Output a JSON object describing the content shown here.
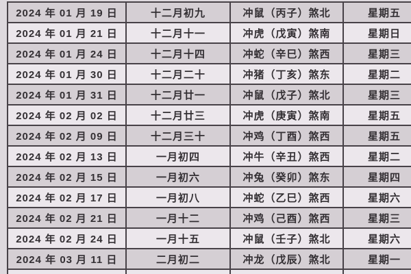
{
  "table": {
    "rows": [
      {
        "date": "2024 年 01 月 19 日",
        "lunar": "十二月初九",
        "clash": "冲鼠（丙子）煞北",
        "weekday": "星期五"
      },
      {
        "date": "2024 年 01 月 21 日",
        "lunar": "十二月十一",
        "clash": "冲虎（戊寅）煞南",
        "weekday": "星期日"
      },
      {
        "date": "2024 年 01 月 24 日",
        "lunar": "十二月十四",
        "clash": "冲蛇（辛巳）煞西",
        "weekday": "星期三"
      },
      {
        "date": "2024 年 01 月 30 日",
        "lunar": "十二月二十",
        "clash": "冲猪（丁亥）煞东",
        "weekday": "星期二"
      },
      {
        "date": "2024 年 01 月 31 日",
        "lunar": "十二月廿一",
        "clash": "冲鼠（戊子）煞北",
        "weekday": "星期三"
      },
      {
        "date": "2024 年 02 月 02 日",
        "lunar": "十二月廿三",
        "clash": "冲虎（庚寅）煞南",
        "weekday": "星期五"
      },
      {
        "date": "2024 年 02 月 09 日",
        "lunar": "十二月三十",
        "clash": "冲鸡（丁酉）煞西",
        "weekday": "星期五"
      },
      {
        "date": "2024 年 02 月 13 日",
        "lunar": "一月初四",
        "clash": "冲牛（辛丑）煞西",
        "weekday": "星期二"
      },
      {
        "date": "2024 年 02 月 15 日",
        "lunar": "一月初六",
        "clash": "冲兔（癸卯）煞东",
        "weekday": "星期四"
      },
      {
        "date": "2024 年 02 月 17 日",
        "lunar": "一月初八",
        "clash": "冲蛇（乙巳）煞西",
        "weekday": "星期六"
      },
      {
        "date": "2024 年 02 月 21 日",
        "lunar": "一月十二",
        "clash": "冲鸡（己酉）煞西",
        "weekday": "星期三"
      },
      {
        "date": "2024 年 02 月 24 日",
        "lunar": "一月十五",
        "clash": "冲鼠（壬子）煞北",
        "weekday": "星期六"
      },
      {
        "date": "2024 年 03 月 11 日",
        "lunar": "二月初二",
        "clash": "冲龙（戊辰）煞北",
        "weekday": "星期一"
      }
    ]
  },
  "colors": {
    "row_dark": "#d5cfd4",
    "row_light": "#ece7ec",
    "border": "#474147",
    "text": "#332f33",
    "background": "#ded9de"
  }
}
